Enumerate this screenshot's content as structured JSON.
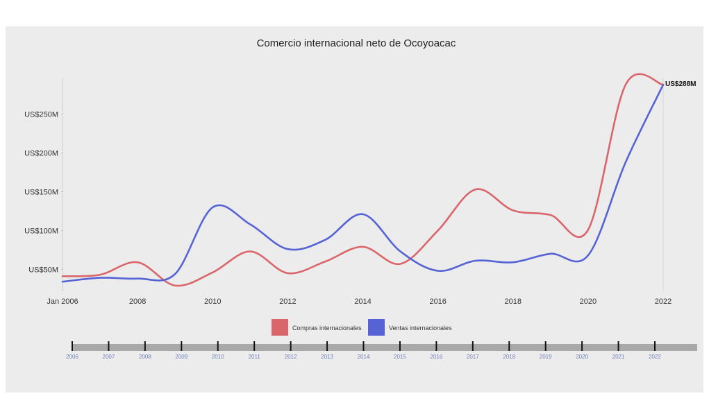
{
  "chart_data": {
    "type": "line",
    "title": "Comercio internacional neto de Ocoyoacac",
    "xlabel": "",
    "ylabel": "",
    "x": [
      2006,
      2007,
      2008,
      2009,
      2010,
      2011,
      2012,
      2013,
      2014,
      2015,
      2016,
      2017,
      2018,
      2019,
      2020,
      2021,
      2022
    ],
    "xlim": [
      2006,
      2022
    ],
    "ylim": [
      27,
      290
    ],
    "x_tick_values": [
      2006,
      2008,
      2010,
      2012,
      2014,
      2016,
      2018,
      2020,
      2022
    ],
    "x_tick_labels": [
      "Jan 2006",
      "2008",
      "2010",
      "2012",
      "2014",
      "2016",
      "2018",
      "2020",
      "2022"
    ],
    "y_tick_values": [
      50,
      100,
      150,
      200,
      250
    ],
    "y_tick_labels": [
      "US$50M",
      "US$100M",
      "US$150M",
      "US$200M",
      "US$250M"
    ],
    "series": [
      {
        "name": "Compras internacionales",
        "color": "#d9666b",
        "values": [
          41,
          43,
          59,
          29,
          46,
          73,
          45,
          60,
          79,
          57,
          100,
          153,
          126,
          120,
          101,
          288,
          288
        ]
      },
      {
        "name": "Ventas internacionales",
        "color": "#5563d4",
        "values": [
          34,
          39,
          38,
          44,
          130,
          108,
          76,
          88,
          121,
          73,
          48,
          61,
          59,
          70,
          68,
          188,
          288
        ]
      }
    ],
    "end_label": "US$288M",
    "legend_position": "bottom",
    "grid": false,
    "timeline": {
      "labels": [
        "2006",
        "2007",
        "2008",
        "2009",
        "2010",
        "2011",
        "2012",
        "2013",
        "2014",
        "2015",
        "2016",
        "2017",
        "2018",
        "2019",
        "2020",
        "2021",
        "2022"
      ]
    }
  },
  "colors": {
    "background": "#ececec",
    "axis_text": "#333333",
    "timeline_bar": "#a9a9a9",
    "timeline_text": "#6f7fb8"
  }
}
